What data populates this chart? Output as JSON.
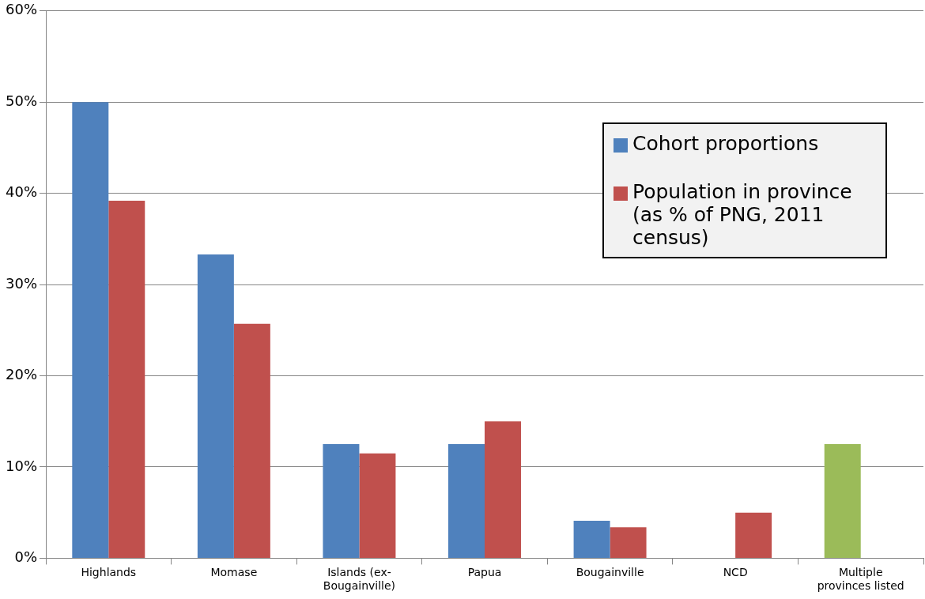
{
  "chart_data": {
    "type": "bar",
    "categories": [
      "Highlands",
      "Momase",
      "Islands (ex-Bougainville)",
      "Papua",
      "Bougainville",
      "NCD",
      "Multiple provinces listed"
    ],
    "series": [
      {
        "name": "Cohort proportions",
        "color": "#4f81bd",
        "colors": [
          "#4f81bd",
          "#4f81bd",
          "#4f81bd",
          "#4f81bd",
          "#4f81bd",
          "#4f81bd",
          "#9bbb59"
        ],
        "values": [
          50,
          33.3,
          12.5,
          12.5,
          4.1,
          null,
          12.5
        ]
      },
      {
        "name": "Population in province (as % of PNG, 2011 census)",
        "color": "#c0504d",
        "values": [
          39.2,
          25.7,
          11.5,
          15.0,
          3.4,
          5.0,
          null
        ]
      }
    ],
    "ylim": [
      0,
      60
    ],
    "yticks": [
      {
        "value": 0,
        "label": "0%"
      },
      {
        "value": 10,
        "label": "10%"
      },
      {
        "value": 20,
        "label": "20%"
      },
      {
        "value": 30,
        "label": "30%"
      },
      {
        "value": 40,
        "label": "40%"
      },
      {
        "value": 50,
        "label": "50%"
      },
      {
        "value": 60,
        "label": "60%"
      }
    ],
    "grid": "y",
    "legend": "top right"
  }
}
